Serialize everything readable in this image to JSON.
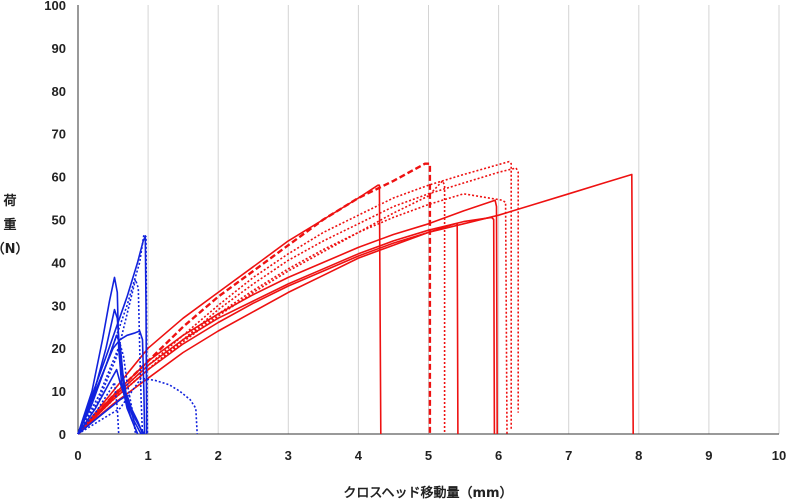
{
  "chart_data": {
    "type": "line",
    "title": "",
    "xlabel": "クロスヘッド移動量（mm）",
    "ylabel_lines": [
      "荷",
      "重",
      "（N）"
    ],
    "xlim": [
      0,
      10
    ],
    "ylim": [
      0,
      100
    ],
    "xticks": [
      "0",
      "1",
      "2",
      "3",
      "4",
      "5",
      "6",
      "7",
      "8",
      "9",
      "10"
    ],
    "yticks": [
      "0",
      "10",
      "20",
      "30",
      "40",
      "50",
      "60",
      "70",
      "80",
      "90",
      "100"
    ],
    "grid": "vertical",
    "legend": "none",
    "colors": {
      "red": "#ee1111",
      "blue": "#1122dd",
      "grid": "#d4d4d4"
    },
    "series": [
      {
        "color": "red",
        "style": "solid",
        "points": [
          [
            0,
            0
          ],
          [
            0.5,
            7
          ],
          [
            1,
            13
          ],
          [
            1.5,
            19
          ],
          [
            2,
            24
          ],
          [
            2.5,
            28.5
          ],
          [
            3,
            33
          ],
          [
            3.5,
            37
          ],
          [
            4,
            41
          ],
          [
            4.5,
            44
          ],
          [
            5,
            47
          ],
          [
            5.5,
            49
          ],
          [
            6,
            51
          ],
          [
            6.5,
            53.5
          ],
          [
            7,
            56
          ],
          [
            7.5,
            58.5
          ],
          [
            7.9,
            60.5
          ],
          [
            7.92,
            0
          ]
        ]
      },
      {
        "color": "red",
        "style": "solid",
        "points": [
          [
            0,
            0
          ],
          [
            0.5,
            10
          ],
          [
            1,
            20
          ],
          [
            1.5,
            27
          ],
          [
            2,
            33
          ],
          [
            2.5,
            39
          ],
          [
            3,
            45
          ],
          [
            3.5,
            50
          ],
          [
            4,
            55
          ],
          [
            4.28,
            58
          ],
          [
            4.3,
            58
          ],
          [
            4.32,
            0
          ]
        ]
      },
      {
        "color": "red",
        "style": "solid",
        "points": [
          [
            0,
            0
          ],
          [
            0.5,
            8
          ],
          [
            1,
            15
          ],
          [
            1.5,
            21
          ],
          [
            2,
            26
          ],
          [
            2.5,
            30.5
          ],
          [
            3,
            34.5
          ],
          [
            3.5,
            38
          ],
          [
            4,
            41.5
          ],
          [
            4.5,
            44.5
          ],
          [
            5,
            47
          ],
          [
            5.38,
            49
          ],
          [
            5.41,
            49
          ],
          [
            5.42,
            0
          ]
        ]
      },
      {
        "color": "red",
        "style": "solid",
        "points": [
          [
            0,
            0
          ],
          [
            0.5,
            8.5
          ],
          [
            1,
            16
          ],
          [
            1.5,
            22
          ],
          [
            2,
            27
          ],
          [
            2.5,
            31
          ],
          [
            3,
            35
          ],
          [
            3.5,
            38.5
          ],
          [
            4,
            42
          ],
          [
            4.5,
            45
          ],
          [
            5,
            47.5
          ],
          [
            5.5,
            49.5
          ],
          [
            5.9,
            50.5
          ],
          [
            5.93,
            50
          ],
          [
            5.94,
            0
          ]
        ]
      },
      {
        "color": "red",
        "style": "solid",
        "points": [
          [
            0,
            0
          ],
          [
            0.5,
            9
          ],
          [
            1,
            17
          ],
          [
            1.5,
            23
          ],
          [
            2,
            28
          ],
          [
            2.5,
            32.5
          ],
          [
            3,
            36.5
          ],
          [
            3.5,
            40
          ],
          [
            4,
            43.5
          ],
          [
            4.5,
            46.5
          ],
          [
            5,
            49
          ],
          [
            5.5,
            52
          ],
          [
            5.95,
            54.5
          ],
          [
            5.97,
            53
          ],
          [
            5.98,
            0
          ]
        ]
      },
      {
        "color": "red",
        "style": "dashed",
        "points": [
          [
            0,
            0
          ],
          [
            0.5,
            9
          ],
          [
            1,
            17
          ],
          [
            1.5,
            25
          ],
          [
            2,
            32
          ],
          [
            2.5,
            38
          ],
          [
            3,
            44
          ],
          [
            3.5,
            50
          ],
          [
            4,
            55
          ],
          [
            4.5,
            59
          ],
          [
            4.95,
            63
          ],
          [
            5.02,
            63
          ],
          [
            5.02,
            0
          ]
        ]
      },
      {
        "color": "red",
        "style": "dotted",
        "points": [
          [
            0,
            0
          ],
          [
            0.5,
            8
          ],
          [
            1,
            15
          ],
          [
            1.5,
            22
          ],
          [
            2,
            29
          ],
          [
            2.5,
            35
          ],
          [
            3,
            40.5
          ],
          [
            3.5,
            45
          ],
          [
            4,
            49
          ],
          [
            4.5,
            53
          ],
          [
            5,
            56
          ],
          [
            5.5,
            58.5
          ],
          [
            6,
            61
          ],
          [
            6.25,
            62
          ],
          [
            6.28,
            61
          ],
          [
            6.28,
            5
          ]
        ]
      },
      {
        "color": "red",
        "style": "dotted",
        "points": [
          [
            0,
            0
          ],
          [
            0.5,
            8.5
          ],
          [
            1,
            16
          ],
          [
            1.5,
            23
          ],
          [
            2,
            30
          ],
          [
            2.5,
            36.5
          ],
          [
            3,
            42
          ],
          [
            3.5,
            47
          ],
          [
            4,
            51
          ],
          [
            4.5,
            55
          ],
          [
            5,
            58
          ],
          [
            5.5,
            60.5
          ],
          [
            6.15,
            63.5
          ],
          [
            6.18,
            63
          ],
          [
            6.18,
            1
          ]
        ]
      },
      {
        "color": "red",
        "style": "dotted",
        "points": [
          [
            0,
            0
          ],
          [
            0.5,
            8
          ],
          [
            1,
            15
          ],
          [
            1.5,
            22
          ],
          [
            2,
            28
          ],
          [
            2.5,
            33.5
          ],
          [
            3,
            38.5
          ],
          [
            3.5,
            43
          ],
          [
            4,
            47
          ],
          [
            4.5,
            50.5
          ],
          [
            5,
            53.5
          ],
          [
            5.5,
            56
          ],
          [
            6.05,
            54.5
          ],
          [
            6.1,
            54
          ],
          [
            6.12,
            0
          ]
        ]
      },
      {
        "color": "red",
        "style": "dotted",
        "points": [
          [
            0,
            0
          ],
          [
            0.5,
            8
          ],
          [
            1,
            15
          ],
          [
            1.5,
            21.5
          ],
          [
            2,
            27.5
          ],
          [
            2.5,
            33
          ],
          [
            3,
            38
          ],
          [
            3.5,
            42.5
          ],
          [
            4,
            47
          ],
          [
            4.5,
            51.5
          ],
          [
            5,
            55.5
          ],
          [
            5.2,
            59
          ],
          [
            5.23,
            58
          ],
          [
            5.23,
            0
          ]
        ]
      },
      {
        "color": "blue",
        "style": "solid",
        "points": [
          [
            0,
            0
          ],
          [
            0.2,
            10
          ],
          [
            0.35,
            22
          ],
          [
            0.45,
            31
          ],
          [
            0.52,
            36.5
          ],
          [
            0.56,
            33
          ],
          [
            0.58,
            20
          ],
          [
            0.62,
            12
          ],
          [
            0.7,
            6
          ],
          [
            0.8,
            2
          ],
          [
            0.85,
            0
          ]
        ]
      },
      {
        "color": "blue",
        "style": "solid",
        "points": [
          [
            0,
            0
          ],
          [
            0.2,
            8
          ],
          [
            0.4,
            20
          ],
          [
            0.52,
            29
          ],
          [
            0.56,
            27
          ],
          [
            0.6,
            18
          ],
          [
            0.66,
            10
          ],
          [
            0.75,
            4
          ],
          [
            0.85,
            0
          ]
        ]
      },
      {
        "color": "blue",
        "style": "solid",
        "points": [
          [
            0,
            0
          ],
          [
            0.2,
            7
          ],
          [
            0.4,
            16
          ],
          [
            0.55,
            23
          ],
          [
            0.6,
            21
          ],
          [
            0.64,
            14
          ],
          [
            0.7,
            8
          ],
          [
            0.8,
            3
          ],
          [
            0.9,
            0
          ]
        ]
      },
      {
        "color": "blue",
        "style": "solid",
        "points": [
          [
            0,
            0
          ],
          [
            0.25,
            6
          ],
          [
            0.45,
            12
          ],
          [
            0.55,
            15
          ],
          [
            0.6,
            12
          ],
          [
            0.7,
            7
          ],
          [
            0.8,
            4
          ],
          [
            0.9,
            1
          ],
          [
            0.95,
            0
          ]
        ]
      },
      {
        "color": "blue",
        "style": "solid",
        "points": [
          [
            0,
            0
          ],
          [
            0.3,
            4
          ],
          [
            0.6,
            8
          ],
          [
            0.7,
            9
          ],
          [
            0.76,
            6
          ],
          [
            0.85,
            3
          ],
          [
            0.9,
            1
          ],
          [
            0.92,
            0
          ]
        ]
      },
      {
        "color": "blue",
        "style": "solid",
        "points": [
          [
            0,
            0
          ],
          [
            0.3,
            12
          ],
          [
            0.5,
            20
          ],
          [
            0.6,
            22
          ],
          [
            0.7,
            23
          ],
          [
            0.8,
            23.5
          ],
          [
            0.88,
            24
          ],
          [
            0.92,
            22
          ],
          [
            0.94,
            10
          ],
          [
            0.95,
            0
          ]
        ]
      },
      {
        "color": "blue",
        "style": "solid",
        "points": [
          [
            0,
            0
          ],
          [
            0.4,
            18
          ],
          [
            0.7,
            32
          ],
          [
            0.85,
            40
          ],
          [
            0.93,
            45
          ],
          [
            0.96,
            46
          ],
          [
            0.97,
            30
          ],
          [
            0.98,
            0
          ]
        ]
      },
      {
        "color": "blue",
        "style": "dotted",
        "points": [
          [
            0,
            0
          ],
          [
            0.4,
            16
          ],
          [
            0.7,
            30
          ],
          [
            0.88,
            40
          ],
          [
            0.94,
            46.5
          ],
          [
            0.97,
            46
          ],
          [
            0.98,
            20
          ],
          [
            0.99,
            0
          ]
        ]
      },
      {
        "color": "blue",
        "style": "dotted",
        "points": [
          [
            0,
            0
          ],
          [
            0.3,
            8
          ],
          [
            0.55,
            18
          ],
          [
            0.7,
            28
          ],
          [
            0.82,
            36
          ],
          [
            0.86,
            34
          ],
          [
            0.88,
            20
          ],
          [
            0.9,
            8
          ],
          [
            0.92,
            0
          ]
        ]
      },
      {
        "color": "blue",
        "style": "dotted",
        "points": [
          [
            0,
            0
          ],
          [
            0.3,
            9
          ],
          [
            0.5,
            17
          ],
          [
            0.6,
            21
          ],
          [
            0.65,
            18
          ],
          [
            0.7,
            12
          ],
          [
            0.78,
            5
          ],
          [
            0.82,
            0
          ]
        ]
      },
      {
        "color": "blue",
        "style": "dotted",
        "points": [
          [
            0,
            0
          ],
          [
            0.25,
            5
          ],
          [
            0.45,
            10
          ],
          [
            0.52,
            12
          ],
          [
            0.56,
            6
          ],
          [
            0.58,
            0
          ]
        ]
      },
      {
        "color": "blue",
        "style": "dotted",
        "points": [
          [
            0,
            0
          ],
          [
            0.3,
            3
          ],
          [
            0.6,
            6
          ],
          [
            0.9,
            13
          ],
          [
            1.1,
            12.5
          ],
          [
            1.3,
            11.5
          ],
          [
            1.45,
            10
          ],
          [
            1.6,
            8
          ],
          [
            1.68,
            6
          ],
          [
            1.7,
            0
          ]
        ]
      }
    ]
  }
}
